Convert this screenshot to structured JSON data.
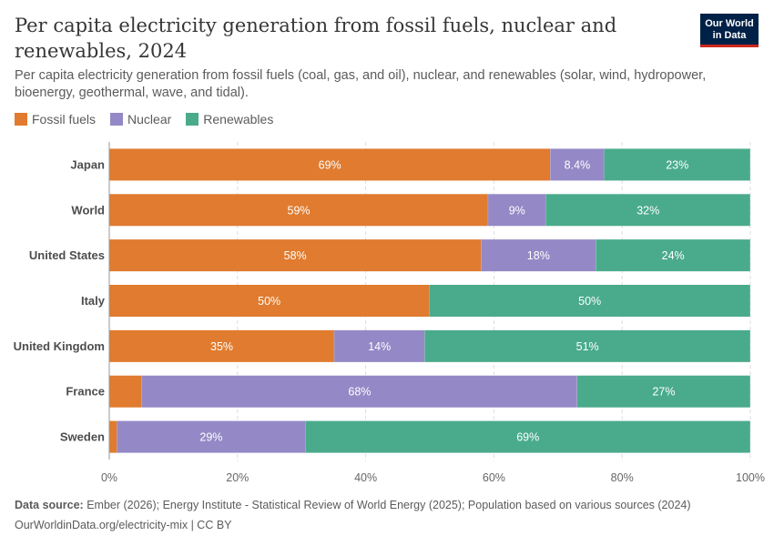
{
  "header": {
    "title": "Per capita electricity generation from fossil fuels, nuclear and renewables, 2024",
    "subtitle": "Per capita electricity generation from fossil fuels (coal, gas, and oil), nuclear, and renewables (solar, wind, hydropower, bioenergy, geothermal, wave, and tidal).",
    "logo_line1": "Our World",
    "logo_line2": "in Data"
  },
  "colors": {
    "fossil": "#e07b2f",
    "nuclear": "#9489c6",
    "renewables": "#4aab8c",
    "logo_bg": "#002147",
    "logo_accent": "#ce261e"
  },
  "chart_data": {
    "type": "bar",
    "orientation": "horizontal",
    "stacked": true,
    "categories": [
      "Japan",
      "World",
      "United States",
      "Italy",
      "United Kingdom",
      "France",
      "Sweden"
    ],
    "series": [
      {
        "name": "Fossil fuels",
        "values": [
          68.8,
          59.1,
          58.0,
          49.9,
          35.1,
          5.1,
          1.2
        ],
        "labels": [
          "69%",
          "59%",
          "58%",
          "50%",
          "35%",
          "",
          ""
        ]
      },
      {
        "name": "Nuclear",
        "values": [
          8.4,
          9.0,
          17.9,
          0,
          14.1,
          67.9,
          29.4
        ],
        "labels": [
          "8.4%",
          "9%",
          "18%",
          "",
          "14%",
          "68%",
          "29%"
        ]
      },
      {
        "name": "Renewables",
        "values": [
          22.8,
          31.9,
          24.1,
          50.1,
          50.8,
          27.0,
          69.4
        ],
        "labels": [
          "23%",
          "32%",
          "24%",
          "50%",
          "51%",
          "27%",
          "69%"
        ]
      }
    ],
    "x_ticks": [
      "0%",
      "20%",
      "40%",
      "60%",
      "80%",
      "100%"
    ],
    "xlim": [
      0,
      100
    ],
    "grid": true,
    "legend_position": "top-left"
  },
  "footer": {
    "source_label": "Data source:",
    "source_text": "Ember (2026); Energy Institute - Statistical Review of World Energy (2025); Population based on various sources (2024)",
    "url_text": "OurWorldinData.org/electricity-mix | CC BY"
  }
}
